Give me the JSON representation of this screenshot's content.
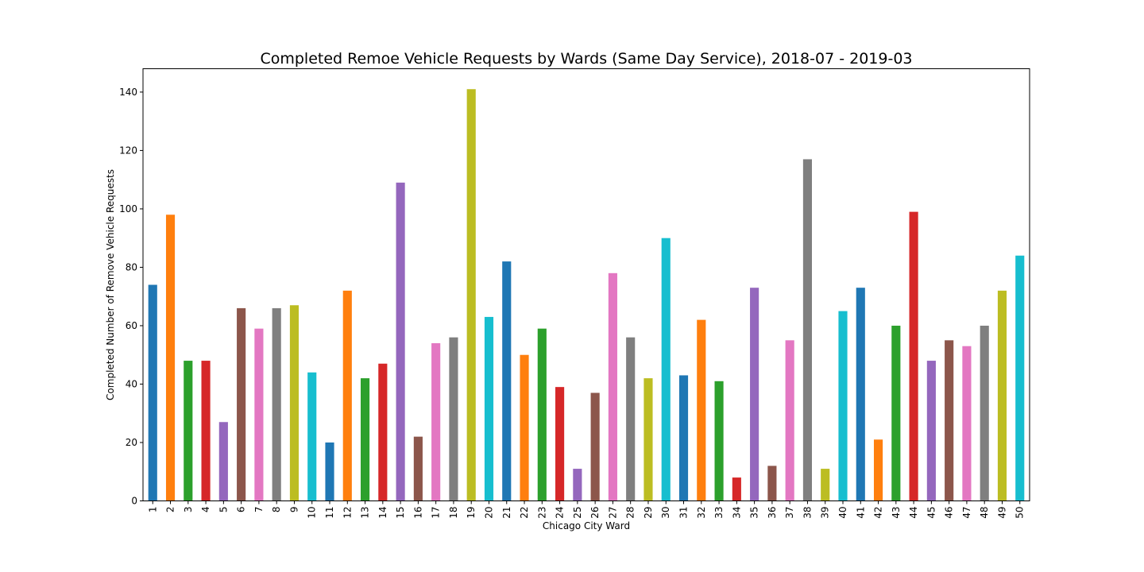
{
  "chart_data": {
    "type": "bar",
    "title": "Completed Remoe Vehicle Requests by Wards (Same Day Service), 2018-07 - 2019-03",
    "xlabel": "Chicago City Ward",
    "ylabel": "Completed Number of Remove Vehicle Requests",
    "ylim": [
      0,
      148
    ],
    "yticks": [
      0,
      20,
      40,
      60,
      80,
      100,
      120,
      140
    ],
    "grid": false,
    "legend": "none",
    "categories": [
      "1",
      "2",
      "3",
      "4",
      "5",
      "6",
      "7",
      "8",
      "9",
      "10",
      "11",
      "12",
      "13",
      "14",
      "15",
      "16",
      "17",
      "18",
      "19",
      "20",
      "21",
      "22",
      "23",
      "24",
      "25",
      "26",
      "27",
      "28",
      "29",
      "30",
      "31",
      "32",
      "33",
      "34",
      "35",
      "36",
      "37",
      "38",
      "39",
      "40",
      "41",
      "42",
      "43",
      "44",
      "45",
      "46",
      "47",
      "48",
      "49",
      "50"
    ],
    "values": [
      74,
      98,
      48,
      48,
      27,
      66,
      59,
      66,
      67,
      44,
      20,
      72,
      42,
      47,
      109,
      22,
      54,
      56,
      141,
      63,
      82,
      50,
      59,
      39,
      11,
      37,
      78,
      56,
      42,
      90,
      43,
      62,
      41,
      8,
      73,
      12,
      55,
      117,
      11,
      65,
      73,
      21,
      60,
      99,
      48,
      55,
      53,
      60,
      72,
      84
    ],
    "colors": [
      "#1f77b4",
      "#ff7f0e",
      "#2ca02c",
      "#d62728",
      "#9467bd",
      "#8c564b",
      "#e377c2",
      "#7f7f7f",
      "#bcbd22",
      "#17becf"
    ]
  }
}
